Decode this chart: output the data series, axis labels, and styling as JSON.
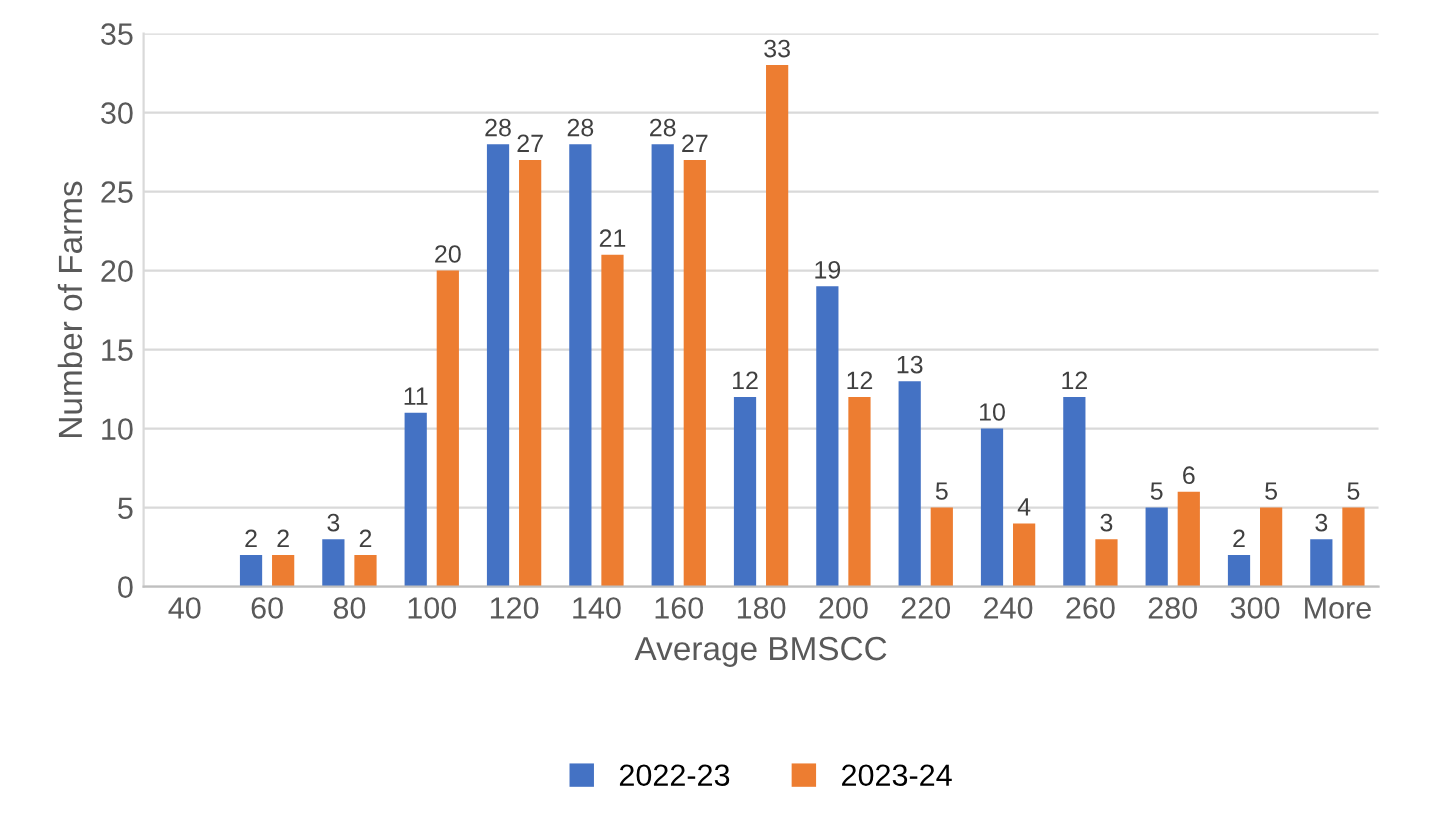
{
  "chart_data": {
    "type": "bar",
    "xlabel": "Average BMSCC",
    "ylabel": "Number of Farms",
    "categories": [
      "40",
      "60",
      "80",
      "100",
      "120",
      "140",
      "160",
      "180",
      "200",
      "220",
      "240",
      "260",
      "280",
      "300",
      "More"
    ],
    "series": [
      {
        "name": "2022-23",
        "color": "#4472c4",
        "values": [
          null,
          2,
          3,
          11,
          28,
          28,
          28,
          12,
          19,
          13,
          10,
          12,
          5,
          2,
          3
        ]
      },
      {
        "name": "2023-24",
        "color": "#ed7d31",
        "values": [
          null,
          2,
          2,
          20,
          27,
          21,
          27,
          33,
          12,
          5,
          4,
          3,
          6,
          5,
          5
        ]
      }
    ],
    "ylim": [
      0,
      35
    ],
    "yticks": [
      0,
      5,
      10,
      15,
      20,
      25,
      30,
      35
    ],
    "grid": "y",
    "legend": "bottom",
    "data_labels": true
  }
}
